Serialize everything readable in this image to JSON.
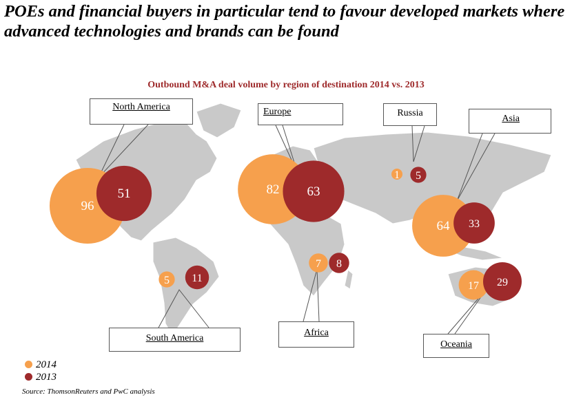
{
  "headline": "POEs and financial buyers in particular tend to favour developed markets where advanced technologies and brands can be found",
  "source": "Source: ThomsonReuters and PwC analysis",
  "colors": {
    "c2014": "#f6a04d",
    "c2013": "#9e2a2b",
    "land": "#c9c9c9"
  },
  "chart_data": {
    "type": "bubble-map",
    "title": "Outbound  M&A deal volume by region of destination 2014 vs. 2013",
    "series": [
      {
        "name": "2014",
        "color": "#f6a04d"
      },
      {
        "name": "2013",
        "color": "#9e2a2b"
      }
    ],
    "regions": [
      {
        "name": "North America",
        "v2014": 96,
        "v2013": 51
      },
      {
        "name": "Europe",
        "v2014": 82,
        "v2013": 63
      },
      {
        "name": "Russia",
        "v2014": 1,
        "v2013": 5
      },
      {
        "name": "Asia",
        "v2014": 64,
        "v2013": 33
      },
      {
        "name": "South America",
        "v2014": 5,
        "v2013": 11
      },
      {
        "name": "Africa",
        "v2014": 7,
        "v2013": 8
      },
      {
        "name": "Oceania",
        "v2014": 17,
        "v2013": 29
      }
    ]
  }
}
